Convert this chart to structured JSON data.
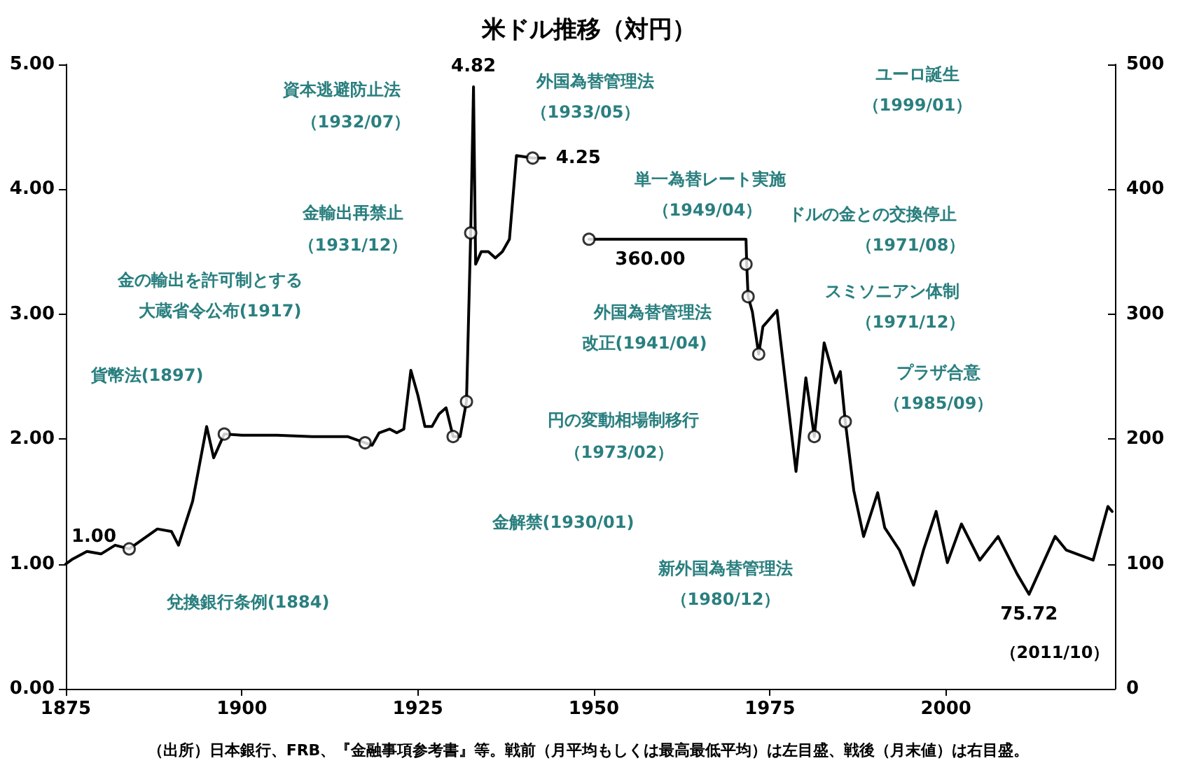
{
  "chart_data": {
    "type": "line",
    "title": "米ドル推移（対円）",
    "grid": false,
    "xlim": [
      1875,
      2024
    ],
    "xticks": [
      1875,
      1900,
      1925,
      1950,
      1975,
      2000
    ],
    "ylim": [
      0,
      5
    ],
    "yticks": [
      {
        "value": 0,
        "label": "0.00"
      },
      {
        "value": 1,
        "label": "1.00"
      },
      {
        "value": 2,
        "label": "2.00"
      },
      {
        "value": 3,
        "label": "3.00"
      },
      {
        "value": 4,
        "label": "4.00"
      },
      {
        "value": 5,
        "label": "5.00"
      }
    ],
    "y2lim": [
      0,
      500
    ],
    "y2ticks": [
      0,
      100,
      200,
      300,
      400,
      500
    ],
    "series": [
      {
        "color": "#000000",
        "marker": "none",
        "x": [
          1875,
          1876,
          1878,
          1880,
          1882,
          1884,
          1886,
          1888,
          1890,
          1891,
          1893,
          1894,
          1895,
          1896,
          1897.5,
          1900,
          1905,
          1910,
          1915,
          1917.5,
          1918.5,
          1919.5,
          1921,
          1922,
          1923,
          1924,
          1925,
          1926,
          1927,
          1928,
          1929,
          1930,
          1931,
          1931.9,
          1932.5,
          1932.9,
          1933.2,
          1934,
          1935,
          1936,
          1937,
          1938,
          1939,
          1941.3,
          1943
        ],
        "values": [
          1.0,
          1.04,
          1.1,
          1.08,
          1.15,
          1.12,
          1.2,
          1.28,
          1.26,
          1.15,
          1.5,
          1.8,
          2.1,
          1.85,
          2.04,
          2.03,
          2.03,
          2.02,
          2.02,
          1.97,
          1.95,
          2.05,
          2.08,
          2.05,
          2.08,
          2.55,
          2.35,
          2.1,
          2.1,
          2.2,
          2.25,
          2.02,
          2.02,
          2.3,
          3.65,
          4.82,
          3.4,
          3.5,
          3.5,
          3.45,
          3.5,
          3.6,
          4.27,
          4.25,
          4.25
        ],
        "value_labels": [
          "1.00",
          null,
          null,
          null,
          null,
          null,
          null,
          null,
          null,
          null,
          null,
          null,
          null,
          null,
          null,
          null,
          null,
          null,
          null,
          null,
          null,
          null,
          null,
          null,
          null,
          null,
          null,
          null,
          null,
          null,
          null,
          null,
          null,
          null,
          null,
          "4.82",
          null,
          null,
          null,
          null,
          null,
          null,
          null,
          null,
          "4.25"
        ]
      },
      {
        "type": "line",
        "axis": "y2",
        "color": "#000000",
        "marker": "none",
        "x": [
          1949.3,
          1958,
          1971.6,
          1971.7,
          1971.9,
          1972.5,
          1973.4,
          1974,
          1976,
          1978.7,
          1980.1,
          1981.3,
          1982.7,
          1984.3,
          1985,
          1985.7,
          1986.9,
          1988.3,
          1990.3,
          1991.3,
          1993.4,
          1995.4,
          1996.8,
          1998.6,
          2000.2,
          2002.2,
          2004.8,
          2007.4,
          2010.1,
          2011.8,
          2015.5,
          2017.1,
          2020.9,
          2023,
          2023.6
        ],
        "values": [
          360,
          360,
          360,
          340,
          314,
          302,
          268,
          290,
          303,
          174,
          249,
          202,
          277,
          245,
          254,
          214,
          159,
          122,
          157,
          129,
          111,
          83,
          111,
          142,
          101,
          132,
          103,
          122,
          92,
          75.72,
          122,
          111,
          103,
          146,
          142
        ],
        "value_labels": [
          null,
          "360.00",
          null,
          null,
          null,
          null,
          null,
          null,
          null,
          null,
          null,
          null,
          null,
          null,
          null,
          null,
          null,
          null,
          null,
          null,
          null,
          null,
          null,
          null,
          null,
          null,
          null,
          null,
          null,
          "75.72",
          null,
          null,
          null,
          null,
          null
        ]
      },
      {
        "type": "scatter",
        "color": "#ffffff",
        "marker": "circle",
        "x": [
          1884,
          1897.5,
          1917.5,
          1930,
          1931.9,
          1932.5,
          1941.3
        ],
        "values": [
          1.12,
          2.04,
          1.97,
          2.02,
          2.3,
          3.65,
          4.25
        ]
      },
      {
        "type": "scatter",
        "axis": "y2",
        "color": "#ffffff",
        "marker": "circle",
        "x": [
          1949.3,
          1971.6,
          1971.9,
          1973.4,
          1981.3,
          1985.7
        ],
        "values": [
          360,
          340,
          314,
          268,
          202,
          214
        ]
      }
    ],
    "annotations": [
      "貨幣法(1897)",
      "兌換銀行条例(1884)",
      "金の輸出を許可制とする",
      "大蔵省令公布(1917)",
      "金輸出再禁止",
      "（1931/12）",
      "資本逃避防止法",
      "（1932/07）",
      "外国為替管理法",
      "（1933/05）",
      "金解禁(1930/01)",
      "外国為替管理法",
      "改正(1941/04)",
      "単一為替レート実施",
      "（1949/04）",
      "ドルの金との交換停止",
      "（1971/08）",
      "スミソニアン体制",
      "（1971/12）",
      "円の変動相場制移行",
      "（1973/02）",
      "プラザ合意",
      "（1985/09）",
      "新外国為替管理法",
      "（1980/12）",
      "ユーロ誕生",
      "（1999/01）",
      "（2011/10）",
      "（出所）日本銀行、FRB、『金融事項参考書』等。戦前（月平均もしくは最高最低平均）は左目盛、戦後（月末値）は右目盛。"
    ]
  }
}
